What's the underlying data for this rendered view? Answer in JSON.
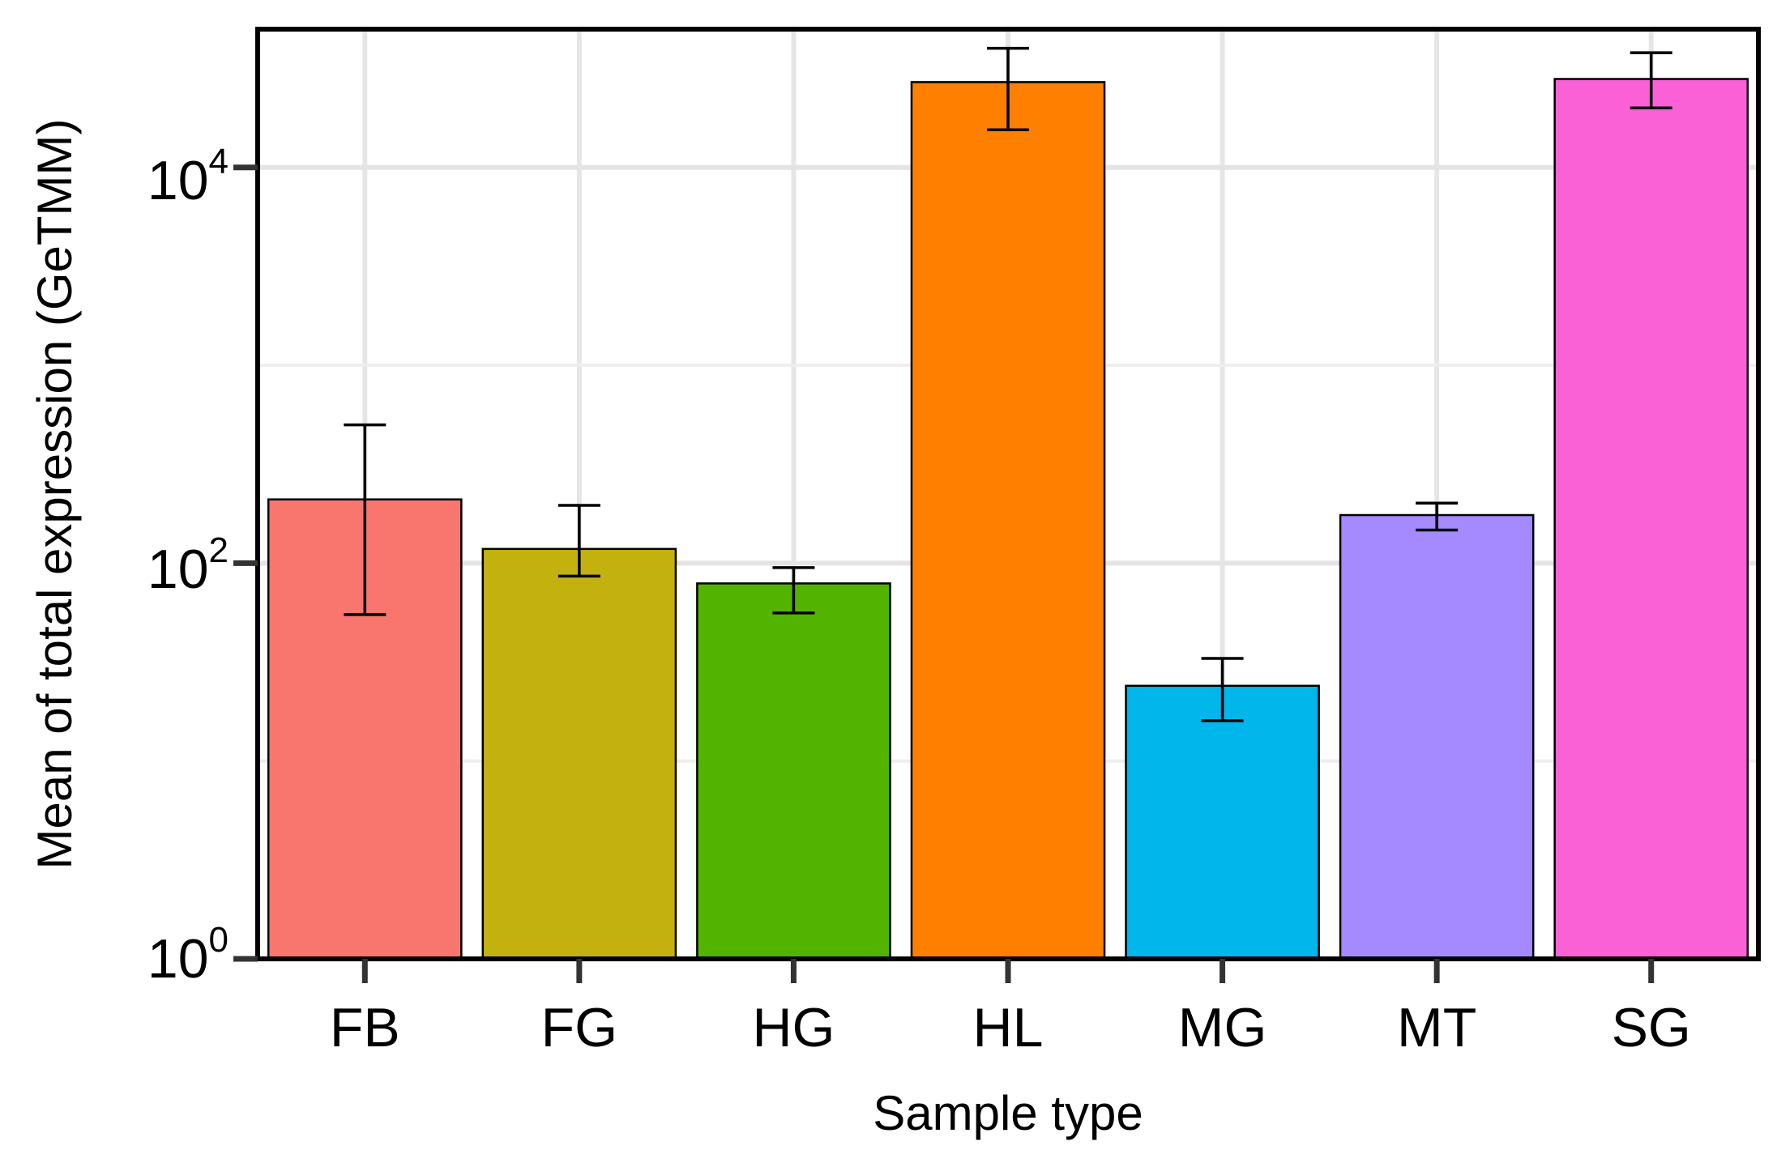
{
  "chart_data": {
    "type": "bar",
    "title": "",
    "xlabel": "Sample type",
    "ylabel": "Mean of total expression (GeTMM)",
    "yscale": "log10",
    "ylim": [
      1,
      50000
    ],
    "yticks": [
      {
        "value": 1,
        "base": "10",
        "exponent": "0"
      },
      {
        "value": 100,
        "base": "10",
        "exponent": "2"
      },
      {
        "value": 10000,
        "base": "10",
        "exponent": "4"
      }
    ],
    "categories": [
      "FB",
      "FG",
      "HG",
      "HL",
      "MG",
      "MT",
      "SG"
    ],
    "values": [
      210,
      118,
      79,
      27000,
      24,
      175,
      28000
    ],
    "error_low": [
      55,
      86,
      56,
      15500,
      16,
      147,
      20000
    ],
    "error_high": [
      500,
      196,
      95,
      40000,
      33,
      201,
      38000
    ],
    "colors": [
      "#F8766D",
      "#C3B110",
      "#53B400",
      "#FF7F00",
      "#00B6EB",
      "#A58AFF",
      "#FB61D7"
    ],
    "grid": true,
    "legend": "none"
  }
}
